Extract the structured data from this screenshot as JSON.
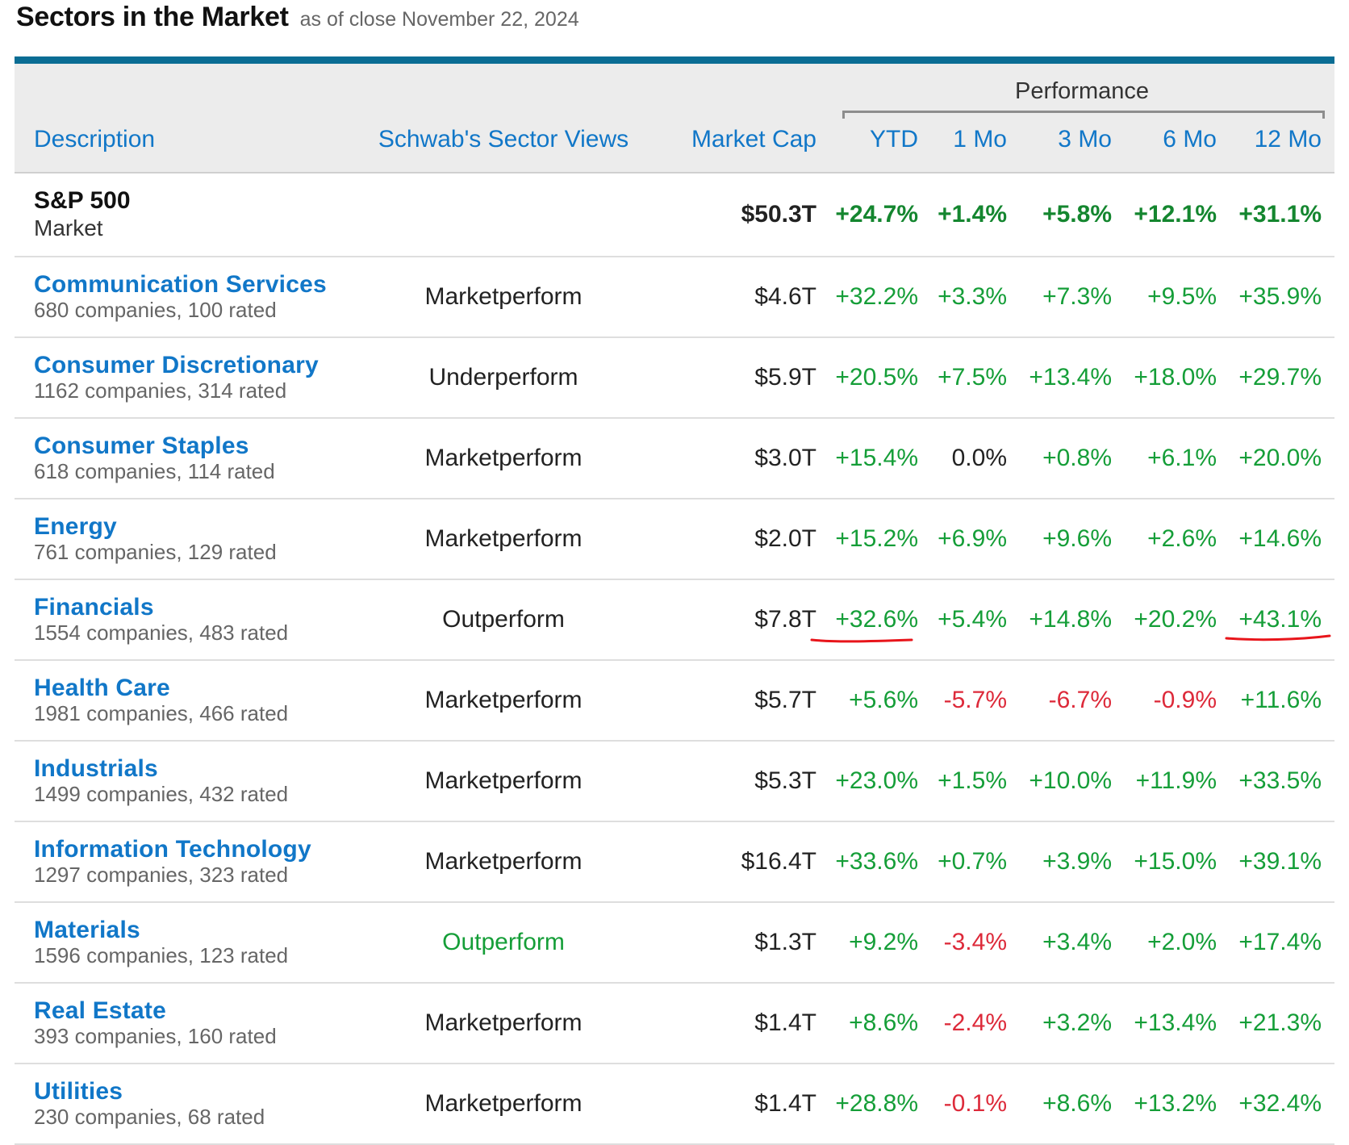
{
  "header": {
    "title": "Sectors in the Market",
    "subtitle": "as of close November 22, 2024"
  },
  "table": {
    "group_header": "Performance",
    "columns": {
      "description": "Description",
      "views": "Schwab's Sector Views",
      "market_cap": "Market Cap",
      "ytd": "YTD",
      "mo1": "1 Mo",
      "mo3": "3 Mo",
      "mo6": "6 Mo",
      "mo12": "12 Mo"
    },
    "market_row": {
      "name": "S&P 500",
      "sub": "Market",
      "market_cap": "$50.3T",
      "ytd": "+24.7%",
      "mo1": "+1.4%",
      "mo3": "+5.8%",
      "mo6": "+12.1%",
      "mo12": "+31.1%"
    },
    "rows": [
      {
        "name": "Communication Services",
        "sub": "680 companies, 100 rated",
        "view": "Marketperform",
        "view_color": "",
        "market_cap": "$4.6T",
        "ytd": "+32.2%",
        "mo1": "+3.3%",
        "mo3": "+7.3%",
        "mo6": "+9.5%",
        "mo12": "+35.9%"
      },
      {
        "name": "Consumer Discretionary",
        "sub": "1162 companies, 314 rated",
        "view": "Underperform",
        "view_color": "",
        "market_cap": "$5.9T",
        "ytd": "+20.5%",
        "mo1": "+7.5%",
        "mo3": "+13.4%",
        "mo6": "+18.0%",
        "mo12": "+29.7%"
      },
      {
        "name": "Consumer Staples",
        "sub": "618 companies, 114 rated",
        "view": "Marketperform",
        "view_color": "",
        "market_cap": "$3.0T",
        "ytd": "+15.4%",
        "mo1": "0.0%",
        "mo3": "+0.8%",
        "mo6": "+6.1%",
        "mo12": "+20.0%"
      },
      {
        "name": "Energy",
        "sub": "761 companies, 129 rated",
        "view": "Marketperform",
        "view_color": "",
        "market_cap": "$2.0T",
        "ytd": "+15.2%",
        "mo1": "+6.9%",
        "mo3": "+9.6%",
        "mo6": "+2.6%",
        "mo12": "+14.6%"
      },
      {
        "name": "Financials",
        "sub": "1554 companies, 483 rated",
        "view": "Outperform",
        "view_color": "",
        "market_cap": "$7.8T",
        "ytd": "+32.6%",
        "mo1": "+5.4%",
        "mo3": "+14.8%",
        "mo6": "+20.2%",
        "mo12": "+43.1%"
      },
      {
        "name": "Health Care",
        "sub": "1981 companies, 466 rated",
        "view": "Marketperform",
        "view_color": "",
        "market_cap": "$5.7T",
        "ytd": "+5.6%",
        "mo1": "-5.7%",
        "mo3": "-6.7%",
        "mo6": "-0.9%",
        "mo12": "+11.6%"
      },
      {
        "name": "Industrials",
        "sub": "1499 companies, 432 rated",
        "view": "Marketperform",
        "view_color": "",
        "market_cap": "$5.3T",
        "ytd": "+23.0%",
        "mo1": "+1.5%",
        "mo3": "+10.0%",
        "mo6": "+11.9%",
        "mo12": "+33.5%"
      },
      {
        "name": "Information Technology",
        "sub": "1297 companies, 323 rated",
        "view": "Marketperform",
        "view_color": "",
        "market_cap": "$16.4T",
        "ytd": "+33.6%",
        "mo1": "+0.7%",
        "mo3": "+3.9%",
        "mo6": "+15.0%",
        "mo12": "+39.1%"
      },
      {
        "name": "Materials",
        "sub": "1596 companies, 123 rated",
        "view": "Outperform",
        "view_color": "#159e38",
        "market_cap": "$1.3T",
        "ytd": "+9.2%",
        "mo1": "-3.4%",
        "mo3": "+3.4%",
        "mo6": "+2.0%",
        "mo12": "+17.4%"
      },
      {
        "name": "Real Estate",
        "sub": "393 companies, 160 rated",
        "view": "Marketperform",
        "view_color": "",
        "market_cap": "$1.4T",
        "ytd": "+8.6%",
        "mo1": "-2.4%",
        "mo3": "+3.2%",
        "mo6": "+13.4%",
        "mo12": "+21.3%"
      },
      {
        "name": "Utilities",
        "sub": "230 companies, 68 rated",
        "view": "Marketperform",
        "view_color": "",
        "market_cap": "$1.4T",
        "ytd": "+28.8%",
        "mo1": "-0.1%",
        "mo3": "+8.6%",
        "mo6": "+13.2%",
        "mo12": "+32.4%"
      }
    ]
  },
  "annotations": {
    "underline_color": "#e8151b",
    "underlined_cells": [
      "Financials YTD",
      "Financials 12 Mo"
    ]
  },
  "colors": {
    "accent": "#0a6d94",
    "link": "#1177c8",
    "positive": "#159e38",
    "negative": "#dd2a3a"
  }
}
